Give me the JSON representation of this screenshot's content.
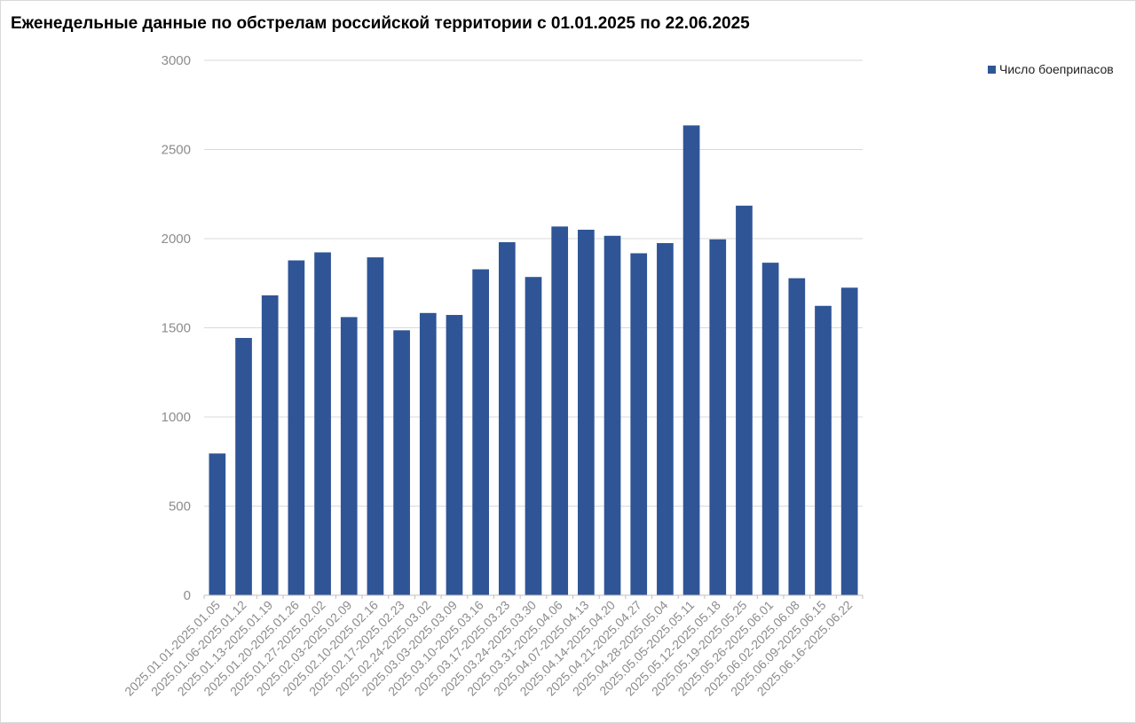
{
  "title": "Еженедельные данные по обстрелам российской территории с 01.01.2025 по 22.06.2025",
  "colors": {
    "bar": "#2f5597",
    "grid": "#d9d9d9",
    "tick": "#8c8c8c",
    "axis": "#bfbfbf"
  },
  "chart_data": {
    "type": "bar",
    "title": "Еженедельные данные по обстрелам российской территории с 01.01.2025 по 22.06.2025",
    "xlabel": "",
    "ylabel": "",
    "ylim": [
      0,
      3000
    ],
    "yticks": [
      0,
      500,
      1000,
      1500,
      2000,
      2500,
      3000
    ],
    "grid": true,
    "legend_position": "top-right",
    "categories": [
      "2025.01.01-2025.01.05",
      "2025.01.06-2025.01.12",
      "2025.01.13-2025.01.19",
      "2025.01.20-2025.01.26",
      "2025.01.27-2025.02.02",
      "2025.02.03-2025.02.09",
      "2025.02.10-2025.02.16",
      "2025.02.17-2025.02.23",
      "2025.02.24-2025.03.02",
      "2025.03.03-2025.03.09",
      "2025.03.10-2025.03.16",
      "2025.03.17-2025.03.23",
      "2025.03.24-2025.03.30",
      "2025.03.31-2025.04.06",
      "2025.04.07-2025.04.13",
      "2025.04.14-2025.04.20",
      "2025.04.21-2025.04.27",
      "2025.04.28-2025.05.04",
      "2025.05.05-2025.05.11",
      "2025.05.12-2025.05.18",
      "2025.05.19-2025.05.25",
      "2025.05.26-2025.06.01",
      "2025.06.02-2025.06.08",
      "2025.06.09-2025.06.15",
      "2025.06.16-2025.06.22"
    ],
    "series": [
      {
        "name": "Число боеприпасов",
        "values": [
          795,
          1443,
          1682,
          1878,
          1923,
          1560,
          1895,
          1486,
          1583,
          1572,
          1828,
          1980,
          1785,
          2068,
          2050,
          2016,
          1918,
          1975,
          2635,
          1996,
          2185,
          1865,
          1778,
          1623,
          1725
        ]
      }
    ]
  }
}
